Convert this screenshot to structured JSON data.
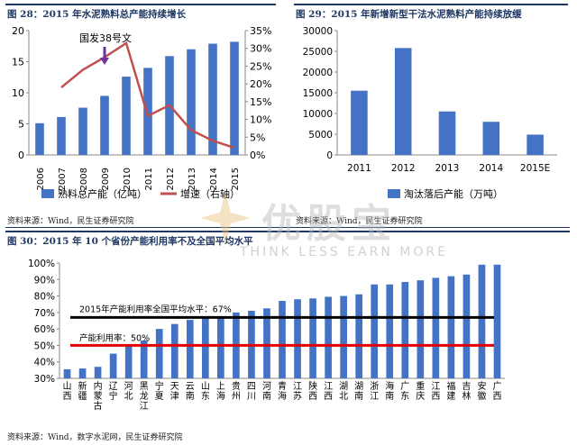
{
  "fig28": {
    "title": "图 28：2015 年水泥熟料总产能持续增长",
    "annotation": "国发38号文",
    "legend_bar": "熟料总产能（亿吨）",
    "legend_line": "增速（右轴）",
    "source": "资料来源：Wind，民生证券研究院"
  },
  "fig29": {
    "title": "图 29：2015 年新增新型干法水泥熟料产能持续放缓",
    "legend_bar": "淘汰落后产能（万吨）",
    "source": "资料来源：Wind，民生证券研究院"
  },
  "fig30": {
    "title": "图 30：2015 年 10 个省份产能利用率不及全国平均水平",
    "avg_label": "2015年产能利用率全国平均水平：67%",
    "threshold_label": "产能利用率：50%",
    "source": "资料来源：Wind，数字水泥网，民生证券研究院"
  },
  "watermark": {
    "cn": "优股宝",
    "en": "THINK LESS EARN MORE"
  },
  "colors": {
    "bar": "#4472c4",
    "line": "#c0504d",
    "avg": "#000000",
    "threshold": "#e00000",
    "title": "#1f3864"
  },
  "chart_data": [
    {
      "type": "bar",
      "categories": [
        "2006",
        "2007",
        "2008",
        "2009",
        "2010",
        "2011",
        "2012",
        "2013",
        "2014",
        "2015"
      ],
      "series": [
        {
          "name": "熟料总产能（亿吨）",
          "values": [
            5.1,
            6.1,
            7.6,
            9.5,
            12.6,
            14.0,
            15.9,
            17.0,
            17.9,
            18.2
          ],
          "axis": "left"
        },
        {
          "name": "增速（右轴）",
          "type": "line",
          "values": [
            null,
            19,
            24,
            27.5,
            31.5,
            11,
            14,
            7,
            4,
            2
          ],
          "axis": "right"
        }
      ],
      "ylim": [
        0,
        20
      ],
      "yticks": [
        0,
        5,
        10,
        15,
        20
      ],
      "ylim_right": [
        0,
        35
      ],
      "yticks_right": [
        "0%",
        "5%",
        "10%",
        "15%",
        "20%",
        "25%",
        "30%",
        "35%"
      ],
      "annotation": {
        "text": "国发38号文",
        "category": "2009"
      }
    },
    {
      "type": "bar",
      "categories": [
        "2011",
        "2012",
        "2013",
        "2014",
        "2015E"
      ],
      "series": [
        {
          "name": "淘汰落后产能（万吨）",
          "values": [
            15500,
            25800,
            10500,
            8000,
            4900
          ]
        }
      ],
      "ylim": [
        0,
        30000
      ],
      "yticks": [
        0,
        5000,
        10000,
        15000,
        20000,
        25000,
        30000
      ]
    },
    {
      "type": "bar",
      "categories": [
        "山西",
        "新疆",
        "内蒙古",
        "辽宁",
        "河北",
        "黑龙江",
        "宁夏",
        "天津",
        "云南",
        "山东",
        "上海",
        "贵州",
        "四川",
        "河南",
        "青海",
        "江苏",
        "陕西",
        "江西",
        "湖北",
        "湖南",
        "浙江",
        "海南",
        "广东",
        "重庆",
        "江西",
        "福建",
        "吉林",
        "安徽",
        "广西"
      ],
      "series": [
        {
          "name": "产能利用率",
          "values": [
            35.5,
            36,
            37,
            45,
            50,
            53,
            60,
            63,
            65.5,
            66.5,
            67.5,
            70,
            71,
            72.5,
            77,
            78,
            78.5,
            79.5,
            80,
            81,
            87,
            87,
            88.5,
            89.5,
            91,
            92,
            93,
            99,
            99
          ]
        }
      ],
      "ylim": [
        30,
        100
      ],
      "yticks": [
        "30%",
        "40%",
        "50%",
        "60%",
        "70%",
        "80%",
        "90%",
        "100%"
      ],
      "reference_lines": [
        {
          "value": 67,
          "label": "2015年产能利用率全国平均水平：67%"
        },
        {
          "value": 50,
          "label": "产能利用率：50%"
        }
      ]
    }
  ]
}
